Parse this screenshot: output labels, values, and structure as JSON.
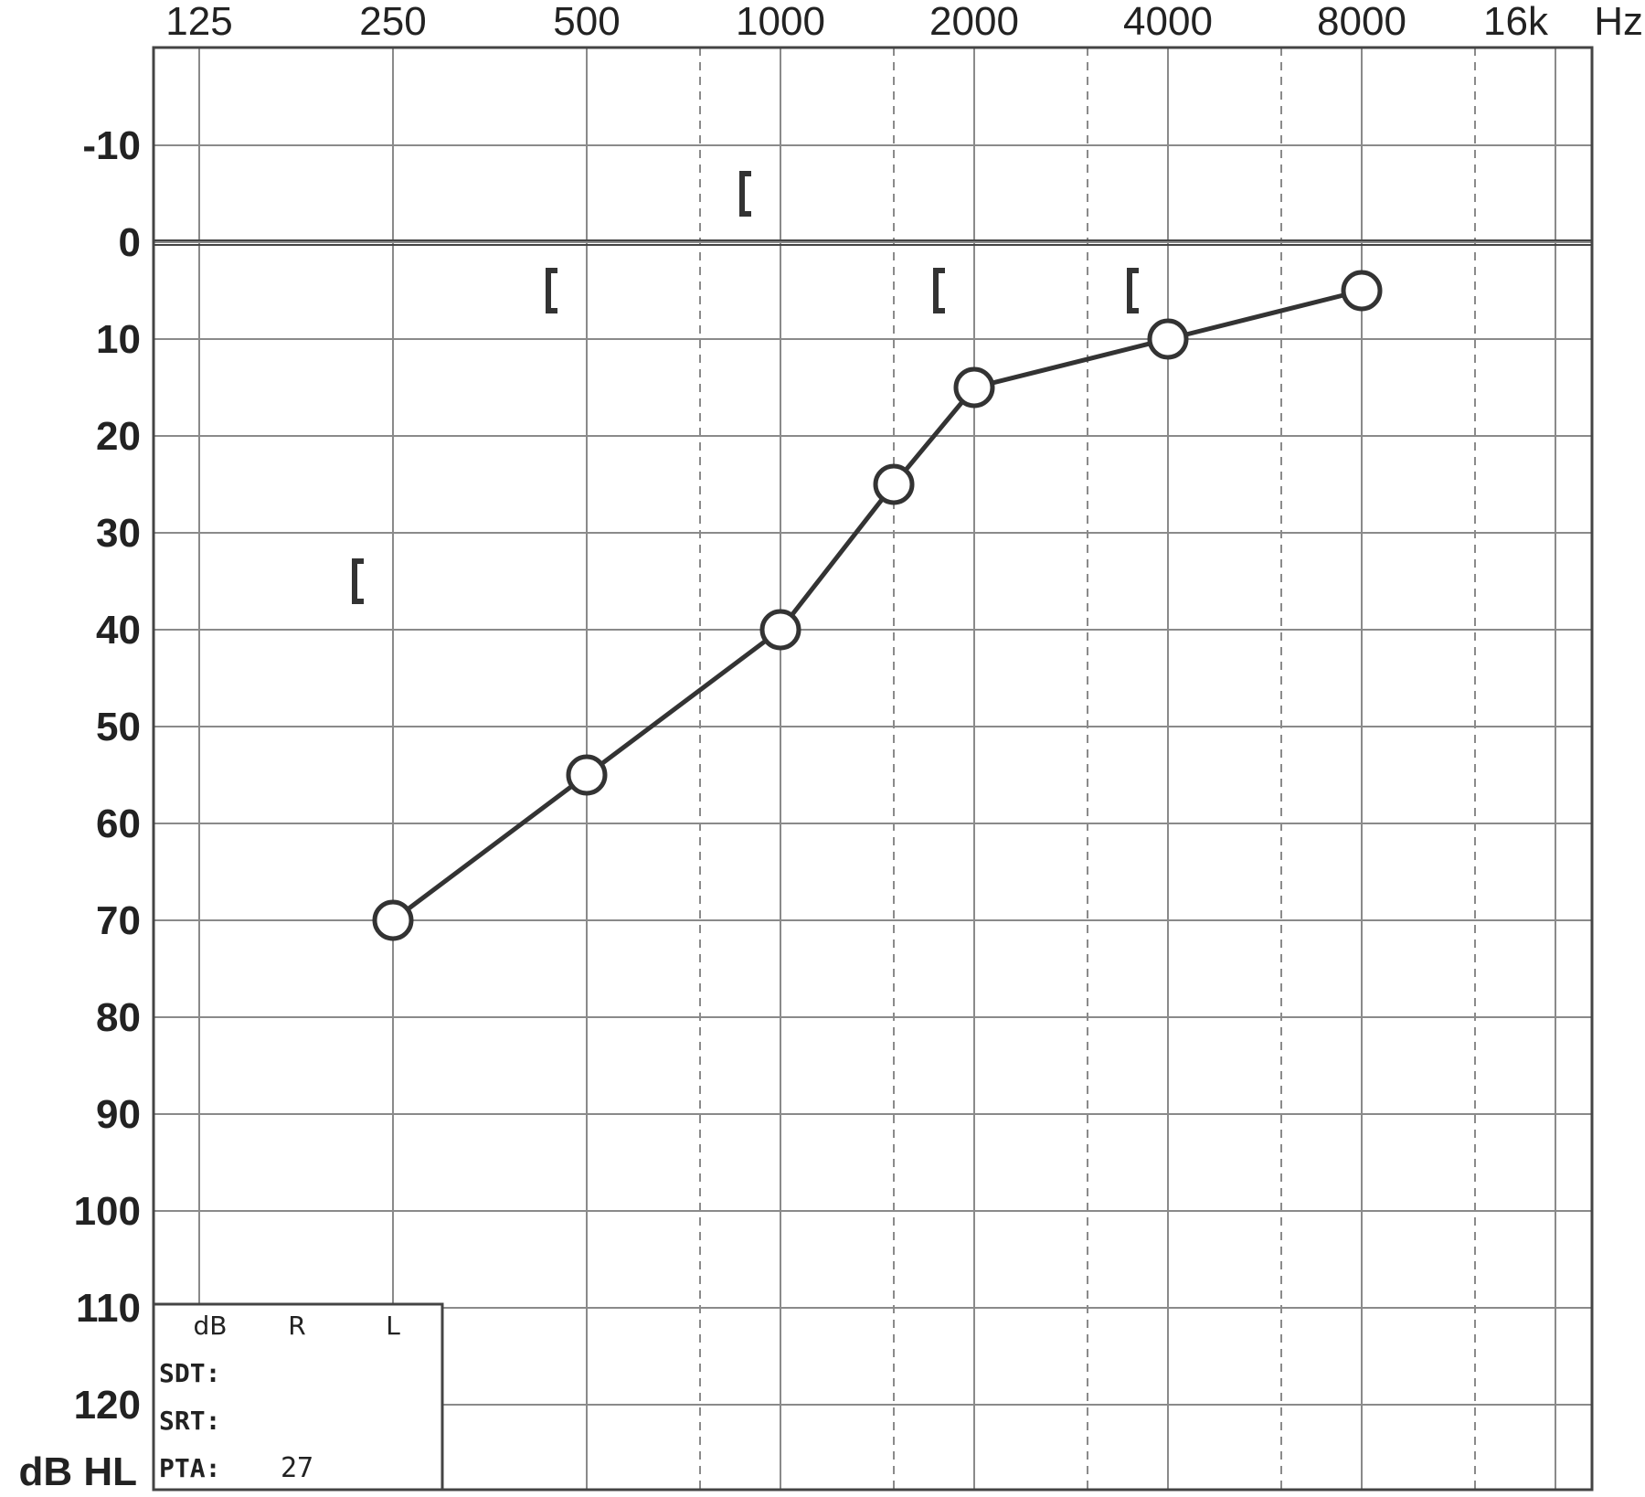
{
  "chart_data": {
    "type": "line",
    "title": "",
    "x_scale": "log2",
    "x_unit": "Hz",
    "y_unit": "dB HL",
    "y_inverted": true,
    "ylim": [
      -20,
      130
    ],
    "grid": true,
    "x_ticks": [
      {
        "value": 125,
        "label": "125"
      },
      {
        "value": 250,
        "label": "250"
      },
      {
        "value": 500,
        "label": "500"
      },
      {
        "value": 1000,
        "label": "1000"
      },
      {
        "value": 2000,
        "label": "2000"
      },
      {
        "value": 4000,
        "label": "4000"
      },
      {
        "value": 8000,
        "label": "8000"
      },
      {
        "value": 16000,
        "label": "16k"
      }
    ],
    "x_mid_ticks": [
      750,
      1500,
      3000,
      6000,
      12000
    ],
    "y_ticks": [
      {
        "value": -10,
        "label": "-10"
      },
      {
        "value": 0,
        "label": "0"
      },
      {
        "value": 10,
        "label": "10"
      },
      {
        "value": 20,
        "label": "20"
      },
      {
        "value": 30,
        "label": "30"
      },
      {
        "value": 40,
        "label": "40"
      },
      {
        "value": 50,
        "label": "50"
      },
      {
        "value": 60,
        "label": "60"
      },
      {
        "value": 70,
        "label": "70"
      },
      {
        "value": 80,
        "label": "80"
      },
      {
        "value": 90,
        "label": "90"
      },
      {
        "value": 100,
        "label": "100"
      },
      {
        "value": 110,
        "label": "110"
      },
      {
        "value": 120,
        "label": "120"
      }
    ],
    "x_unit_label": "Hz",
    "y_unit_label": "dB HL",
    "series": [
      {
        "marker": "circle",
        "connected": true,
        "points": [
          {
            "x": 250,
            "y": 70
          },
          {
            "x": 500,
            "y": 55
          },
          {
            "x": 1000,
            "y": 40
          },
          {
            "x": 1500,
            "y": 25
          },
          {
            "x": 2000,
            "y": 15
          },
          {
            "x": 4000,
            "y": 10
          },
          {
            "x": 8000,
            "y": 5
          }
        ]
      },
      {
        "marker": "bracket",
        "connected": false,
        "points": [
          {
            "x": 250,
            "y": 35
          },
          {
            "x": 500,
            "y": 5
          },
          {
            "x": 1000,
            "y": -5
          },
          {
            "x": 2000,
            "y": 5
          },
          {
            "x": 4000,
            "y": 5
          }
        ]
      }
    ]
  },
  "speech_box": {
    "headers": [
      "dB",
      "R",
      "L"
    ],
    "rows": [
      {
        "label": "SDT:",
        "right": "",
        "left": ""
      },
      {
        "label": "SRT:",
        "right": "",
        "left": ""
      },
      {
        "label": "PTA:",
        "right": "27",
        "left": ""
      }
    ]
  },
  "colors": {
    "ink": "#333333",
    "grid": "#8a8a8a"
  }
}
